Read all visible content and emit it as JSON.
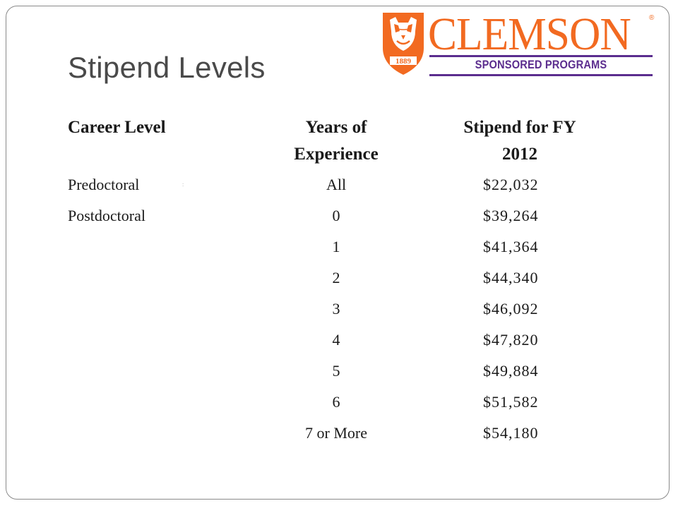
{
  "slide": {
    "title": "Stipend Levels"
  },
  "logo": {
    "wordmark": "CLEMSON",
    "registered_mark": "®",
    "tagline": "SPONSORED PROGRAMS",
    "year": "1889",
    "colors": {
      "orange": "#f26a21",
      "purple": "#5b2d8e"
    }
  },
  "table": {
    "headers": {
      "career_level": "Career Level",
      "years_of_experience_line1": "Years of",
      "years_of_experience_line2": "Experience",
      "stipend_line1": "Stipend for FY",
      "stipend_line2": "2012"
    },
    "rows": [
      {
        "career_level": "Predoctoral",
        "years": "All",
        "stipend": "$22,032"
      },
      {
        "career_level": "Postdoctoral",
        "years": "0",
        "stipend": "$39,264"
      },
      {
        "career_level": "",
        "years": "1",
        "stipend": "$41,364"
      },
      {
        "career_level": "",
        "years": "2",
        "stipend": "$44,340"
      },
      {
        "career_level": "",
        "years": "3",
        "stipend": "$46,092"
      },
      {
        "career_level": "",
        "years": "4",
        "stipend": "$47,820"
      },
      {
        "career_level": "",
        "years": "5",
        "stipend": "$49,884"
      },
      {
        "career_level": "",
        "years": "6",
        "stipend": "$51,582"
      },
      {
        "career_level": "",
        "years": "7 or More",
        "stipend": "$54,180"
      }
    ]
  }
}
